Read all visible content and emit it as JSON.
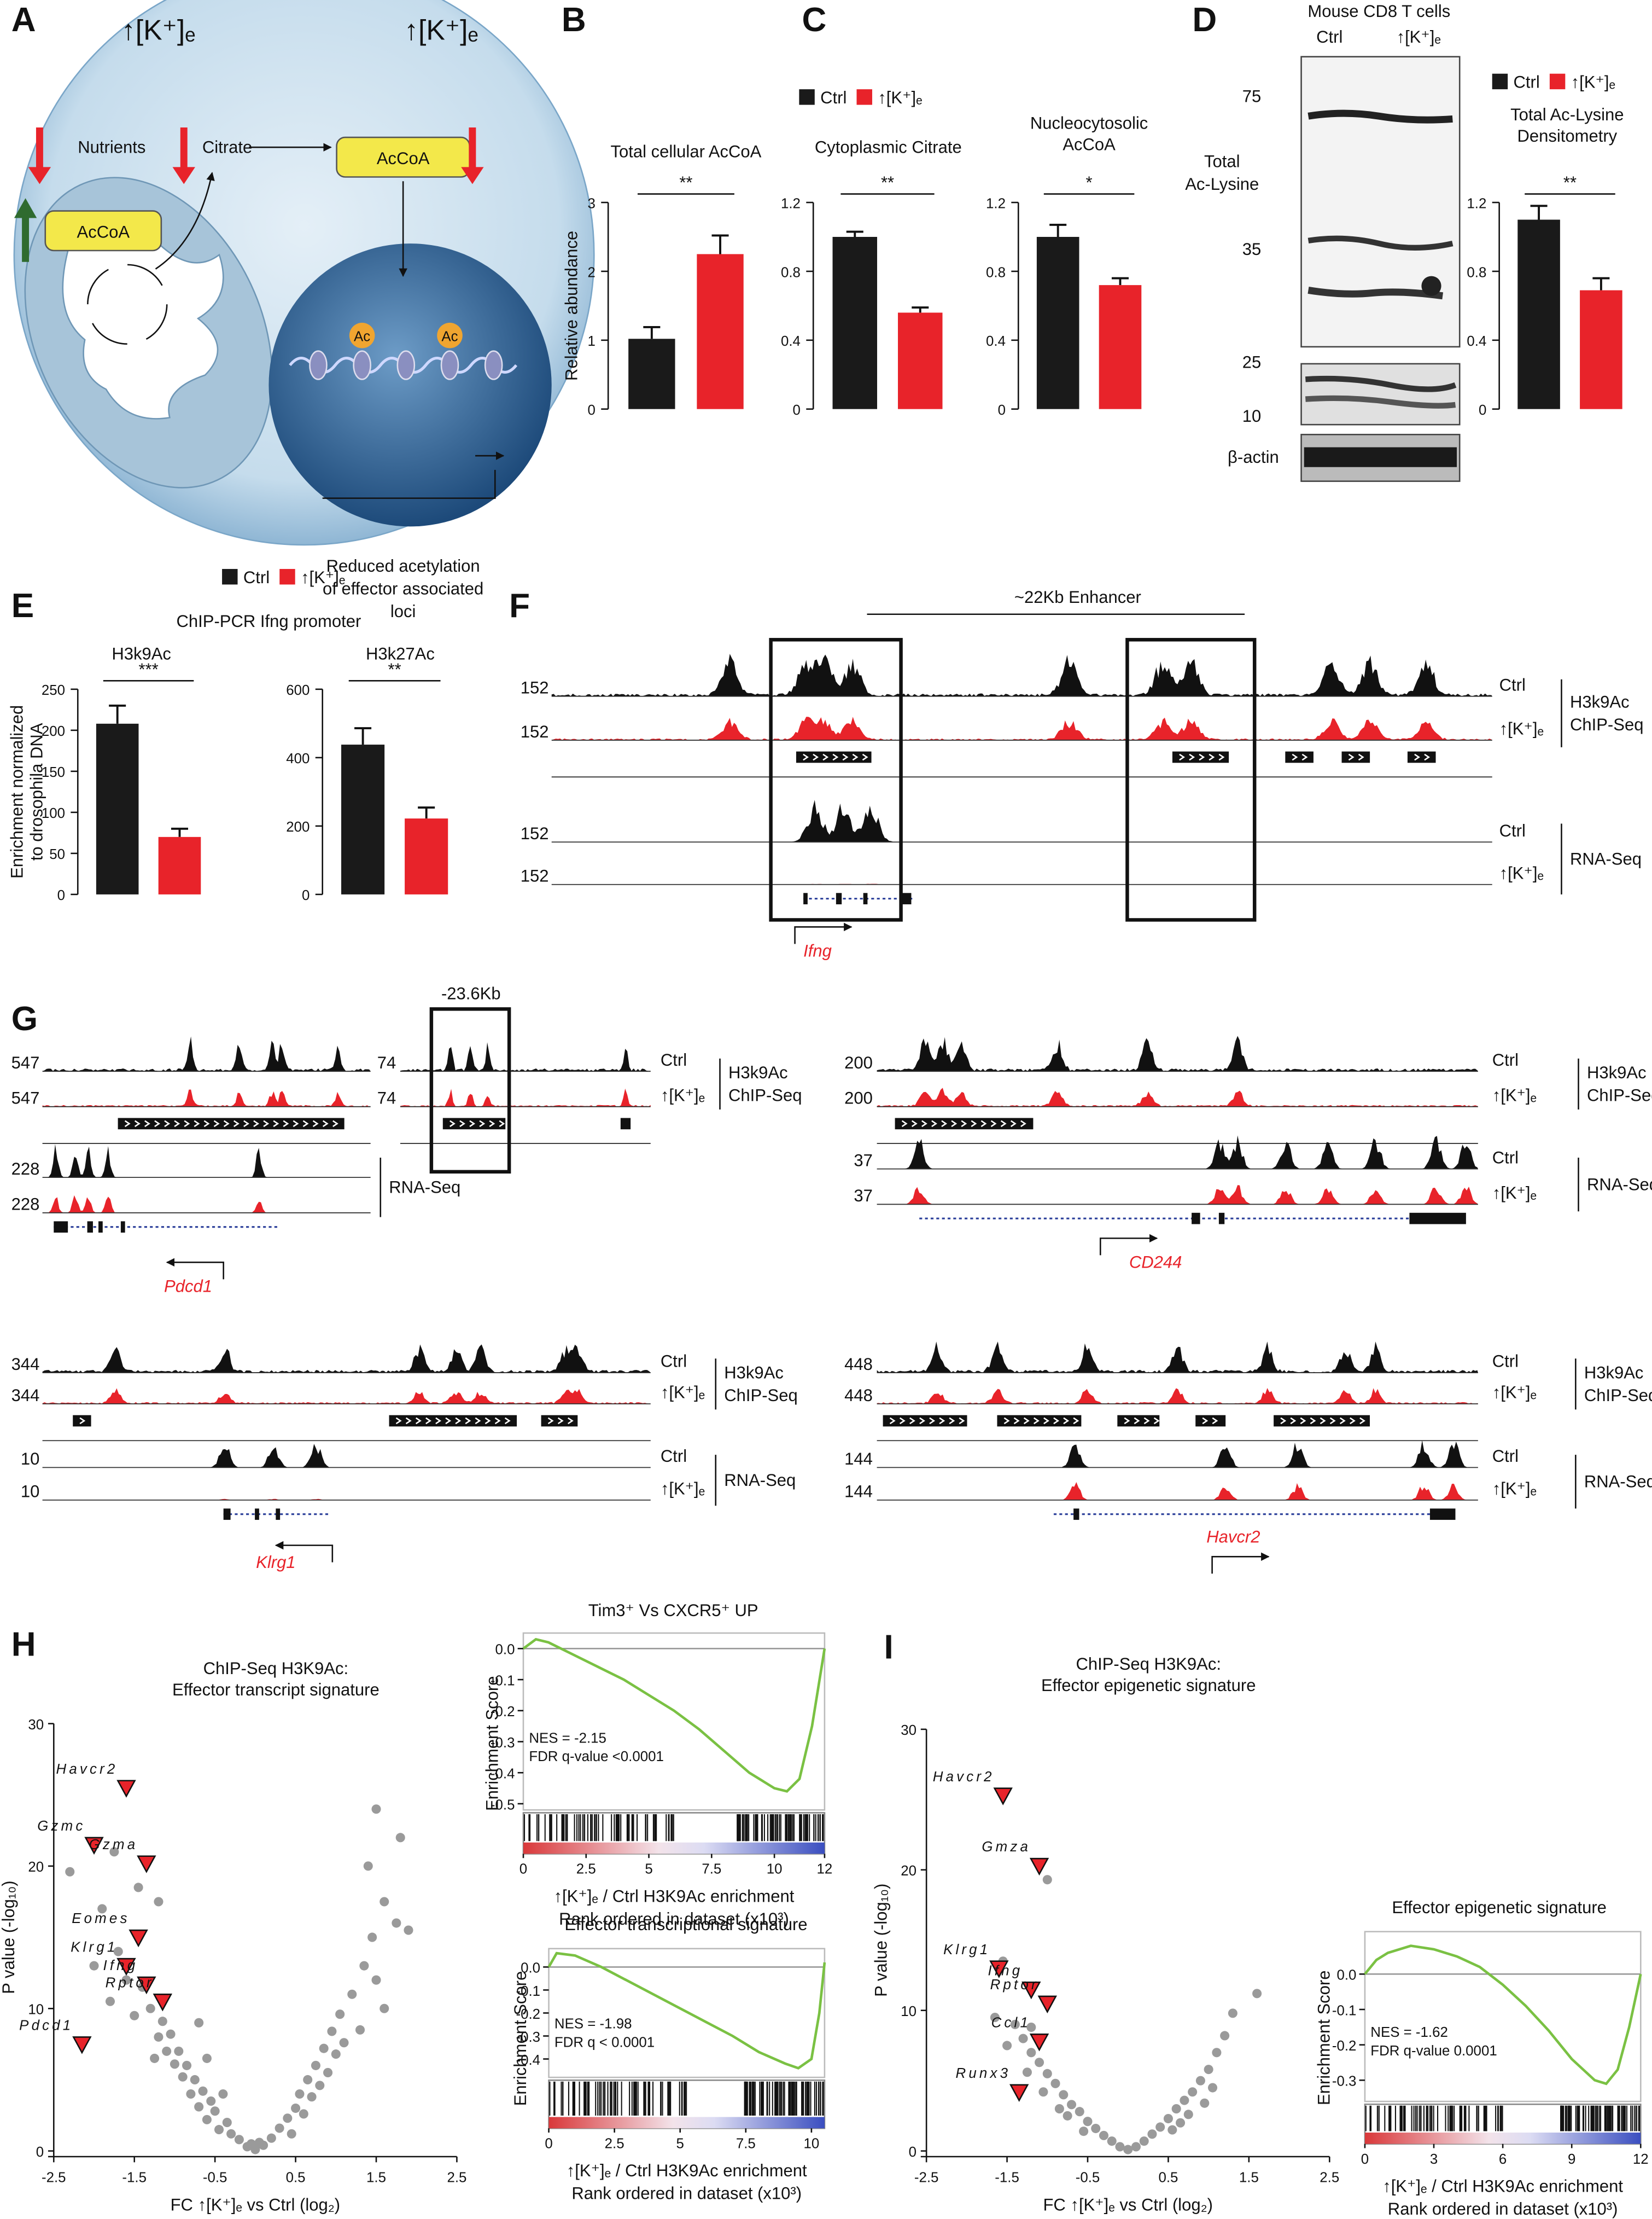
{
  "panel_labels": [
    "A",
    "B",
    "C",
    "D",
    "E",
    "F",
    "G",
    "H",
    "I"
  ],
  "panel_a": {
    "top_left": "↑[K⁺]ₑ",
    "top_right": "↑[K⁺]ₑ",
    "nutrients": "Nutrients",
    "citrate": "Citrate",
    "accoa_cyto": "AcCoA",
    "accoa_mito": "AcCoA",
    "ac": [
      "Ac",
      "Ac"
    ],
    "caption": [
      "Reduced acetylation",
      "of effector associated",
      "loci"
    ]
  },
  "panel_d_blot": {
    "header": [
      "Mouse CD8 T cells",
      "Ctrl",
      "↑[K⁺]ₑ"
    ],
    "markers": [
      "75",
      "35",
      "25",
      "10"
    ],
    "label": [
      "Total",
      "Ac-Lysine"
    ],
    "loading": "β-actin"
  },
  "panel_e": {
    "title": "ChIP-PCR Ifng promoter"
  },
  "panel_f": {
    "enhancer": "~22Kb Enhancer",
    "scales": [
      "152",
      "152",
      "152",
      "152"
    ],
    "tracks": [
      "Ctrl",
      "↑[K⁺]ₑ",
      "Ctrl",
      "↑[K⁺]ₑ"
    ],
    "groups": [
      [
        "H3k9Ac",
        "ChIP-Seq"
      ],
      [
        "RNA-Seq"
      ]
    ],
    "gene": "Ifng"
  },
  "panel_g": {
    "pdcd1": {
      "scales": [
        "547",
        "547",
        "228",
        "228"
      ],
      "enhancer_scales": [
        "74",
        "74"
      ],
      "region": "-23.6Kb",
      "tracks": [
        "Ctrl",
        "↑[K⁺]ₑ"
      ],
      "groups": [
        [
          "H3k9Ac",
          "ChIP-Seq"
        ],
        [
          "RNA-Seq"
        ]
      ],
      "gene": "Pdcd1"
    },
    "cd244": {
      "scales": [
        "200",
        "200",
        "37",
        "37"
      ],
      "tracks": [
        "Ctrl",
        "↑[K⁺]ₑ",
        "Ctrl",
        "↑[K⁺]ₑ"
      ],
      "groups": [
        [
          "H3k9Ac",
          "ChIP-Seq"
        ],
        [
          "RNA-Seq"
        ]
      ],
      "gene": "CD244"
    },
    "klrg1": {
      "scales": [
        "344",
        "344",
        "10",
        "10"
      ],
      "tracks": [
        "Ctrl",
        "↑[K⁺]ₑ",
        "Ctrl",
        "↑[K⁺]ₑ"
      ],
      "groups": [
        [
          "H3k9Ac",
          "ChIP-Seq"
        ],
        [
          "RNA-Seq"
        ]
      ],
      "gene": "Klrg1"
    },
    "havcr2": {
      "scales": [
        "448",
        "448",
        "144",
        "144"
      ],
      "tracks": [
        "Ctrl",
        "↑[K⁺]ₑ",
        "Ctrl",
        "↑[K⁺]ₑ"
      ],
      "groups": [
        [
          "H3k9Ac",
          "ChIP-Seq"
        ],
        [
          "RNA-Seq"
        ]
      ],
      "gene": "Havcr2"
    }
  },
  "chart_data": [
    {
      "type": "bar",
      "title": "Total cellular AcCoA",
      "ylabel": "Relative abundance",
      "ylim": [
        0,
        3
      ],
      "yticks": [
        0,
        1,
        2,
        3
      ],
      "significance": "**",
      "legend": false,
      "series": [
        {
          "name": "Ctrl",
          "color": "#1a1a1a",
          "values": [
            1.02
          ],
          "errors": [
            0.17
          ]
        },
        {
          "name": "↑[K⁺]ₑ",
          "color": "#e8232a",
          "values": [
            2.25
          ],
          "errors": [
            0.27
          ]
        }
      ]
    },
    {
      "type": "bar",
      "title": "Cytoplasmic Citrate",
      "ylim": [
        0,
        1.2
      ],
      "yticks": [
        0,
        0.4,
        0.8,
        1.2
      ],
      "significance": "**",
      "legend": true,
      "series": [
        {
          "name": "Ctrl",
          "color": "#1a1a1a",
          "values": [
            1.0
          ],
          "errors": [
            0.03
          ]
        },
        {
          "name": "↑[K⁺]ₑ",
          "color": "#e8232a",
          "values": [
            0.56
          ],
          "errors": [
            0.03
          ]
        }
      ]
    },
    {
      "type": "bar",
      "title": [
        "Nucleocytosolic",
        "AcCoA"
      ],
      "ylim": [
        0,
        1.2
      ],
      "yticks": [
        0,
        0.4,
        0.8,
        1.2
      ],
      "significance": "*",
      "legend": false,
      "series": [
        {
          "name": "Ctrl",
          "color": "#1a1a1a",
          "values": [
            1.0
          ],
          "errors": [
            0.07
          ]
        },
        {
          "name": "↑[K⁺]ₑ",
          "color": "#e8232a",
          "values": [
            0.72
          ],
          "errors": [
            0.04
          ]
        }
      ]
    },
    {
      "type": "bar",
      "title": [
        "Total Ac-Lysine",
        "Densitometry"
      ],
      "ylim": [
        0,
        1.2
      ],
      "yticks": [
        0,
        0.4,
        0.8,
        1.2
      ],
      "significance": "**",
      "legend": true,
      "series": [
        {
          "name": "Ctrl",
          "color": "#1a1a1a",
          "values": [
            1.1
          ],
          "errors": [
            0.08
          ]
        },
        {
          "name": "↑[K⁺]ₑ",
          "color": "#e8232a",
          "values": [
            0.69
          ],
          "errors": [
            0.07
          ]
        }
      ]
    },
    {
      "type": "bar",
      "title": "H3k9Ac",
      "ylabel": [
        "Enrichment normalized",
        "to drosophila DNA"
      ],
      "ylim": [
        0,
        250
      ],
      "yticks": [
        0,
        50,
        100,
        150,
        200,
        250
      ],
      "significance": "***",
      "legend": true,
      "series": [
        {
          "name": "Ctrl",
          "color": "#1a1a1a",
          "values": [
            208
          ],
          "errors": [
            22
          ]
        },
        {
          "name": "↑[K⁺]ₑ",
          "color": "#e8232a",
          "values": [
            70
          ],
          "errors": [
            10
          ]
        }
      ]
    },
    {
      "type": "bar",
      "title": "H3k27Ac",
      "ylim": [
        0,
        600
      ],
      "yticks": [
        0,
        200,
        400,
        600
      ],
      "significance": "**",
      "legend": false,
      "series": [
        {
          "name": "Ctrl",
          "color": "#1a1a1a",
          "values": [
            438
          ],
          "errors": [
            48
          ]
        },
        {
          "name": "↑[K⁺]ₑ",
          "color": "#e8232a",
          "values": [
            222
          ],
          "errors": [
            32
          ]
        }
      ]
    },
    {
      "type": "scatter",
      "title": "ChIP-Seq H3K9Ac:",
      "subtitle": "Effector transcript signature",
      "xlabel": "FC ↑[K⁺]ₑ vs Ctrl (log₂)",
      "ylabel": "P value (-log₁₀)",
      "xlim": [
        -2.5,
        2.5
      ],
      "xticks": [
        -2.5,
        -1.5,
        -0.5,
        0.5,
        1.5,
        2.5
      ],
      "ylim": [
        0,
        30
      ],
      "yticks": [
        0,
        10,
        20,
        30
      ],
      "points": {
        "color": "#9a9a9a",
        "x": [
          -0.1,
          -0.2,
          -0.3,
          -0.35,
          -0.45,
          -0.5,
          -0.55,
          -0.6,
          -0.65,
          -0.7,
          -0.75,
          -0.8,
          -0.85,
          -0.9,
          -0.95,
          -1.0,
          -1.05,
          -1.1,
          -1.15,
          -1.2,
          -1.25,
          -1.3,
          -1.4,
          -1.5,
          -1.6,
          -1.7,
          -1.8,
          -1.9,
          -2.0,
          -1.45,
          -2.3,
          -1.75,
          -1.2,
          -0.7,
          -0.6,
          -0.4,
          0.1,
          0.2,
          0.3,
          0.4,
          0.45,
          0.5,
          0.55,
          0.6,
          0.65,
          0.7,
          0.75,
          0.8,
          0.85,
          0.9,
          0.95,
          1.0,
          1.05,
          1.1,
          1.2,
          1.3,
          1.35,
          1.45,
          1.5,
          1.6,
          1.4,
          1.5,
          1.6,
          1.75,
          1.9,
          1.8,
          0.0,
          -0.05,
          0.05
        ],
        "y": [
          0.3,
          0.8,
          1.2,
          2,
          1.5,
          2.8,
          3.5,
          2.2,
          4.2,
          3.1,
          5,
          4,
          6,
          5.2,
          7,
          6.1,
          8.2,
          7,
          9.1,
          8,
          6.5,
          10,
          11.5,
          9.5,
          12,
          14,
          10.5,
          17,
          13,
          18.5,
          19.6,
          21,
          17.5,
          9,
          6.5,
          4,
          0.4,
          0.9,
          1.6,
          2.3,
          1.2,
          3,
          4,
          2.6,
          5,
          3.8,
          6,
          4.6,
          7.2,
          5.5,
          8.4,
          6.8,
          9.6,
          7.6,
          11,
          8.5,
          13,
          15,
          12,
          10,
          20,
          24,
          17.5,
          16,
          15.5,
          22,
          0.1,
          0.5,
          0.6
        ]
      },
      "highlights": {
        "color": "#e8232a",
        "labels": [
          "Havcr2",
          "Gzmc",
          "Gzma",
          "Eomes",
          "Klrg1",
          "Ifng",
          "Rptor",
          "Pdcd1"
        ],
        "x": [
          -1.6,
          -2.0,
          -1.35,
          -1.45,
          -1.6,
          -1.35,
          -1.15,
          -2.15
        ],
        "y": [
          25.5,
          21.5,
          20.2,
          15,
          13,
          11.7,
          10.5,
          7.5
        ]
      }
    },
    {
      "type": "line",
      "title": "Tim3⁺ Vs CXCR5⁺ UP",
      "ylabel": "Enrichment  Score",
      "xlabel": "↑[K⁺]ₑ / Ctrl H3K9Ac enrichment",
      "xsublabel": "Rank ordered in dataset (x10³)",
      "annotations": [
        "NES = -2.15",
        "FDR q-value <0.0001"
      ],
      "color": "#7ac143",
      "xlim": [
        0,
        12
      ],
      "xticks": [
        0,
        2.5,
        5,
        7.5,
        10,
        12
      ],
      "ylim": [
        -0.52,
        0.05
      ],
      "yticks": [
        {
          "value": 0,
          "label": "0.0"
        },
        -0.1,
        -0.2,
        -0.3,
        -0.4,
        -0.5
      ],
      "x": [
        0,
        0.5,
        1,
        2,
        3,
        4,
        5,
        6,
        7,
        8,
        9,
        10,
        10.5,
        11,
        11.5,
        12
      ],
      "values": [
        0,
        0.03,
        0.02,
        -0.02,
        -0.06,
        -0.1,
        -0.15,
        -0.2,
        -0.26,
        -0.33,
        -0.4,
        -0.45,
        -0.46,
        -0.42,
        -0.25,
        0
      ]
    },
    {
      "type": "line",
      "title": "Effector transcriptional signature",
      "ylabel": "Enrichment  Score",
      "xlabel": "↑[K⁺]ₑ / Ctrl H3K9Ac enrichment",
      "xsublabel": "Rank ordered in dataset (x10³)",
      "annotations": [
        "NES = -1.98",
        "FDR q < 0.0001"
      ],
      "color": "#7ac143",
      "xlim": [
        0,
        10.5
      ],
      "xticks": [
        0,
        2.5,
        5,
        7.5,
        10
      ],
      "ylim": [
        -0.48,
        0.08
      ],
      "yticks": [
        {
          "value": 0,
          "label": "0.0"
        },
        -0.1,
        -0.2,
        -0.3,
        -0.4
      ],
      "x": [
        0,
        0.3,
        1,
        2,
        3,
        4,
        5,
        6,
        7,
        8,
        9,
        9.5,
        10,
        10.3,
        10.5
      ],
      "values": [
        0,
        0.06,
        0.05,
        0.0,
        -0.06,
        -0.12,
        -0.18,
        -0.24,
        -0.3,
        -0.37,
        -0.42,
        -0.44,
        -0.4,
        -0.2,
        0.02
      ]
    },
    {
      "type": "scatter",
      "title": "ChIP-Seq H3K9Ac:",
      "subtitle": "Effector epigenetic signature",
      "xlabel": "FC ↑[K⁺]ₑ vs Ctrl (log₂)",
      "ylabel": "P value (-log₁₀)",
      "xlim": [
        -2.5,
        2.5
      ],
      "xticks": [
        -2.5,
        -1.5,
        -0.5,
        0.5,
        1.5,
        2.5
      ],
      "ylim": [
        0,
        30
      ],
      "yticks": [
        0,
        10,
        20,
        30
      ],
      "points": {
        "color": "#9a9a9a",
        "x": [
          -0.1,
          -0.2,
          -0.3,
          -0.4,
          -0.5,
          -0.55,
          -0.6,
          -0.7,
          -0.75,
          -0.8,
          -0.85,
          -0.9,
          -1.0,
          -1.05,
          -1.1,
          -1.2,
          -1.25,
          -1.3,
          -1.4,
          -1.5,
          -1.55,
          -1.65,
          -1.0,
          -1.2,
          0.0,
          0.1,
          0.2,
          0.3,
          0.4,
          0.5,
          0.55,
          0.6,
          0.7,
          0.75,
          0.8,
          0.9,
          1.0,
          1.05,
          1.1,
          1.2,
          1.3,
          1.6,
          0.95,
          0.65
        ],
        "y": [
          0.3,
          0.7,
          1.1,
          1.6,
          2.1,
          1.4,
          2.8,
          3.3,
          2.5,
          4,
          3,
          4.8,
          5.5,
          4.2,
          6.3,
          7,
          5.6,
          8,
          9,
          7.5,
          13.5,
          9.5,
          19.3,
          8.8,
          0.1,
          0.3,
          0.7,
          1.2,
          1.7,
          2.3,
          1.5,
          3,
          3.6,
          2.6,
          4.2,
          5,
          5.8,
          4.5,
          7,
          8.2,
          9.8,
          11.2,
          3.4,
          2
        ]
      },
      "highlights": {
        "color": "#e8232a",
        "labels": [
          "Havcr2",
          "Gmza",
          "Klrg1",
          "Ifng",
          "Rptor",
          "Ccl1",
          "Runx3"
        ],
        "x": [
          -1.55,
          -1.1,
          -1.6,
          -1.2,
          -1.0,
          -1.1,
          -1.35
        ],
        "y": [
          25.3,
          20.3,
          13,
          11.5,
          10.5,
          7.8,
          4.2
        ]
      }
    },
    {
      "type": "line",
      "title": "Effector epigenetic signature",
      "ylabel": "Enrichment  Score",
      "xlabel": "↑[K⁺]ₑ / Ctrl H3K9Ac enrichment",
      "xsublabel": "Rank ordered in dataset (x10³)",
      "annotations": [
        "NES = -1.62",
        "FDR q-value 0.0001"
      ],
      "color": "#7ac143",
      "xlim": [
        0,
        12
      ],
      "xticks": [
        0,
        3,
        6,
        9,
        12
      ],
      "ylim": [
        -0.36,
        0.12
      ],
      "yticks": [
        {
          "value": 0,
          "label": "0.0"
        },
        -0.1,
        -0.2,
        -0.3
      ],
      "x": [
        0,
        0.5,
        1,
        2,
        3,
        4,
        5,
        6,
        7,
        8,
        9,
        10,
        10.5,
        11,
        11.5,
        12
      ],
      "values": [
        0,
        0.04,
        0.06,
        0.08,
        0.07,
        0.05,
        0.02,
        -0.03,
        -0.09,
        -0.16,
        -0.24,
        -0.3,
        -0.31,
        -0.27,
        -0.15,
        0
      ]
    }
  ]
}
